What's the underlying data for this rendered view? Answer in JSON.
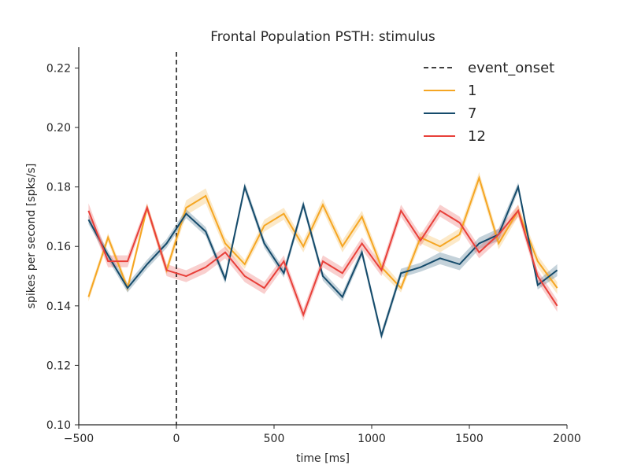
{
  "chart_data": {
    "type": "line",
    "title": "Frontal Population PSTH: stimulus",
    "xlabel": "time [ms]",
    "ylabel": "spikes per second [spks/s]",
    "xlim": [
      -500,
      2000
    ],
    "ylim": [
      0.1,
      0.227
    ],
    "xticks": [
      -500,
      0,
      500,
      1000,
      1500,
      2000
    ],
    "xtick_labels": [
      "−500",
      "0",
      "500",
      "1000",
      "1500",
      "2000"
    ],
    "yticks": [
      0.1,
      0.12,
      0.14,
      0.16,
      0.18,
      0.2,
      0.22
    ],
    "ytick_labels": [
      "0.10",
      "0.12",
      "0.14",
      "0.16",
      "0.18",
      "0.20",
      "0.22"
    ],
    "grid": false,
    "legend_position": "top-right",
    "event_onset": {
      "name": "event_onset",
      "x": 0,
      "color": "#000000",
      "style": "dashed"
    },
    "x": [
      -450,
      -350,
      -250,
      -150,
      -50,
      50,
      150,
      250,
      350,
      450,
      550,
      650,
      750,
      850,
      950,
      1050,
      1150,
      1250,
      1350,
      1450,
      1550,
      1650,
      1750,
      1850,
      1950
    ],
    "series": [
      {
        "name": "1",
        "color": "#f5a623",
        "values": [
          0.143,
          0.163,
          0.146,
          0.173,
          0.152,
          0.173,
          0.177,
          0.161,
          0.154,
          0.167,
          0.171,
          0.16,
          0.174,
          0.16,
          0.17,
          0.153,
          0.146,
          0.163,
          0.16,
          0.164,
          0.183,
          0.161,
          0.172,
          0.155,
          0.146
        ],
        "error": [
          0.0015,
          0.0015,
          0.0015,
          0.0015,
          0.0015,
          0.0025,
          0.0025,
          0.002,
          0.0015,
          0.002,
          0.002,
          0.002,
          0.002,
          0.002,
          0.002,
          0.002,
          0.0015,
          0.002,
          0.002,
          0.002,
          0.002,
          0.002,
          0.002,
          0.002,
          0.002
        ]
      },
      {
        "name": "7",
        "color": "#154b6b",
        "values": [
          0.169,
          0.157,
          0.146,
          0.154,
          0.161,
          0.171,
          0.165,
          0.149,
          0.18,
          0.161,
          0.151,
          0.174,
          0.15,
          0.143,
          0.158,
          0.13,
          0.151,
          0.153,
          0.156,
          0.154,
          0.161,
          0.164,
          0.18,
          0.147,
          0.152
        ],
        "error": [
          0.0015,
          0.0015,
          0.0015,
          0.0015,
          0.0015,
          0.0015,
          0.0015,
          0.0015,
          0.0015,
          0.0015,
          0.0015,
          0.0015,
          0.0015,
          0.0015,
          0.0015,
          0.0015,
          0.0015,
          0.0015,
          0.002,
          0.002,
          0.002,
          0.002,
          0.0015,
          0.0015,
          0.002
        ]
      },
      {
        "name": "12",
        "color": "#e8403a",
        "values": [
          0.172,
          0.155,
          0.155,
          0.173,
          0.152,
          0.15,
          0.153,
          0.158,
          0.15,
          0.146,
          0.155,
          0.137,
          0.155,
          0.151,
          0.161,
          0.152,
          0.172,
          0.162,
          0.172,
          0.168,
          0.158,
          0.164,
          0.172,
          0.15,
          0.14
        ],
        "error": [
          0.0025,
          0.002,
          0.002,
          0.0015,
          0.002,
          0.002,
          0.002,
          0.002,
          0.002,
          0.002,
          0.002,
          0.002,
          0.002,
          0.002,
          0.002,
          0.002,
          0.002,
          0.002,
          0.002,
          0.002,
          0.002,
          0.002,
          0.002,
          0.002,
          0.002
        ]
      }
    ]
  }
}
